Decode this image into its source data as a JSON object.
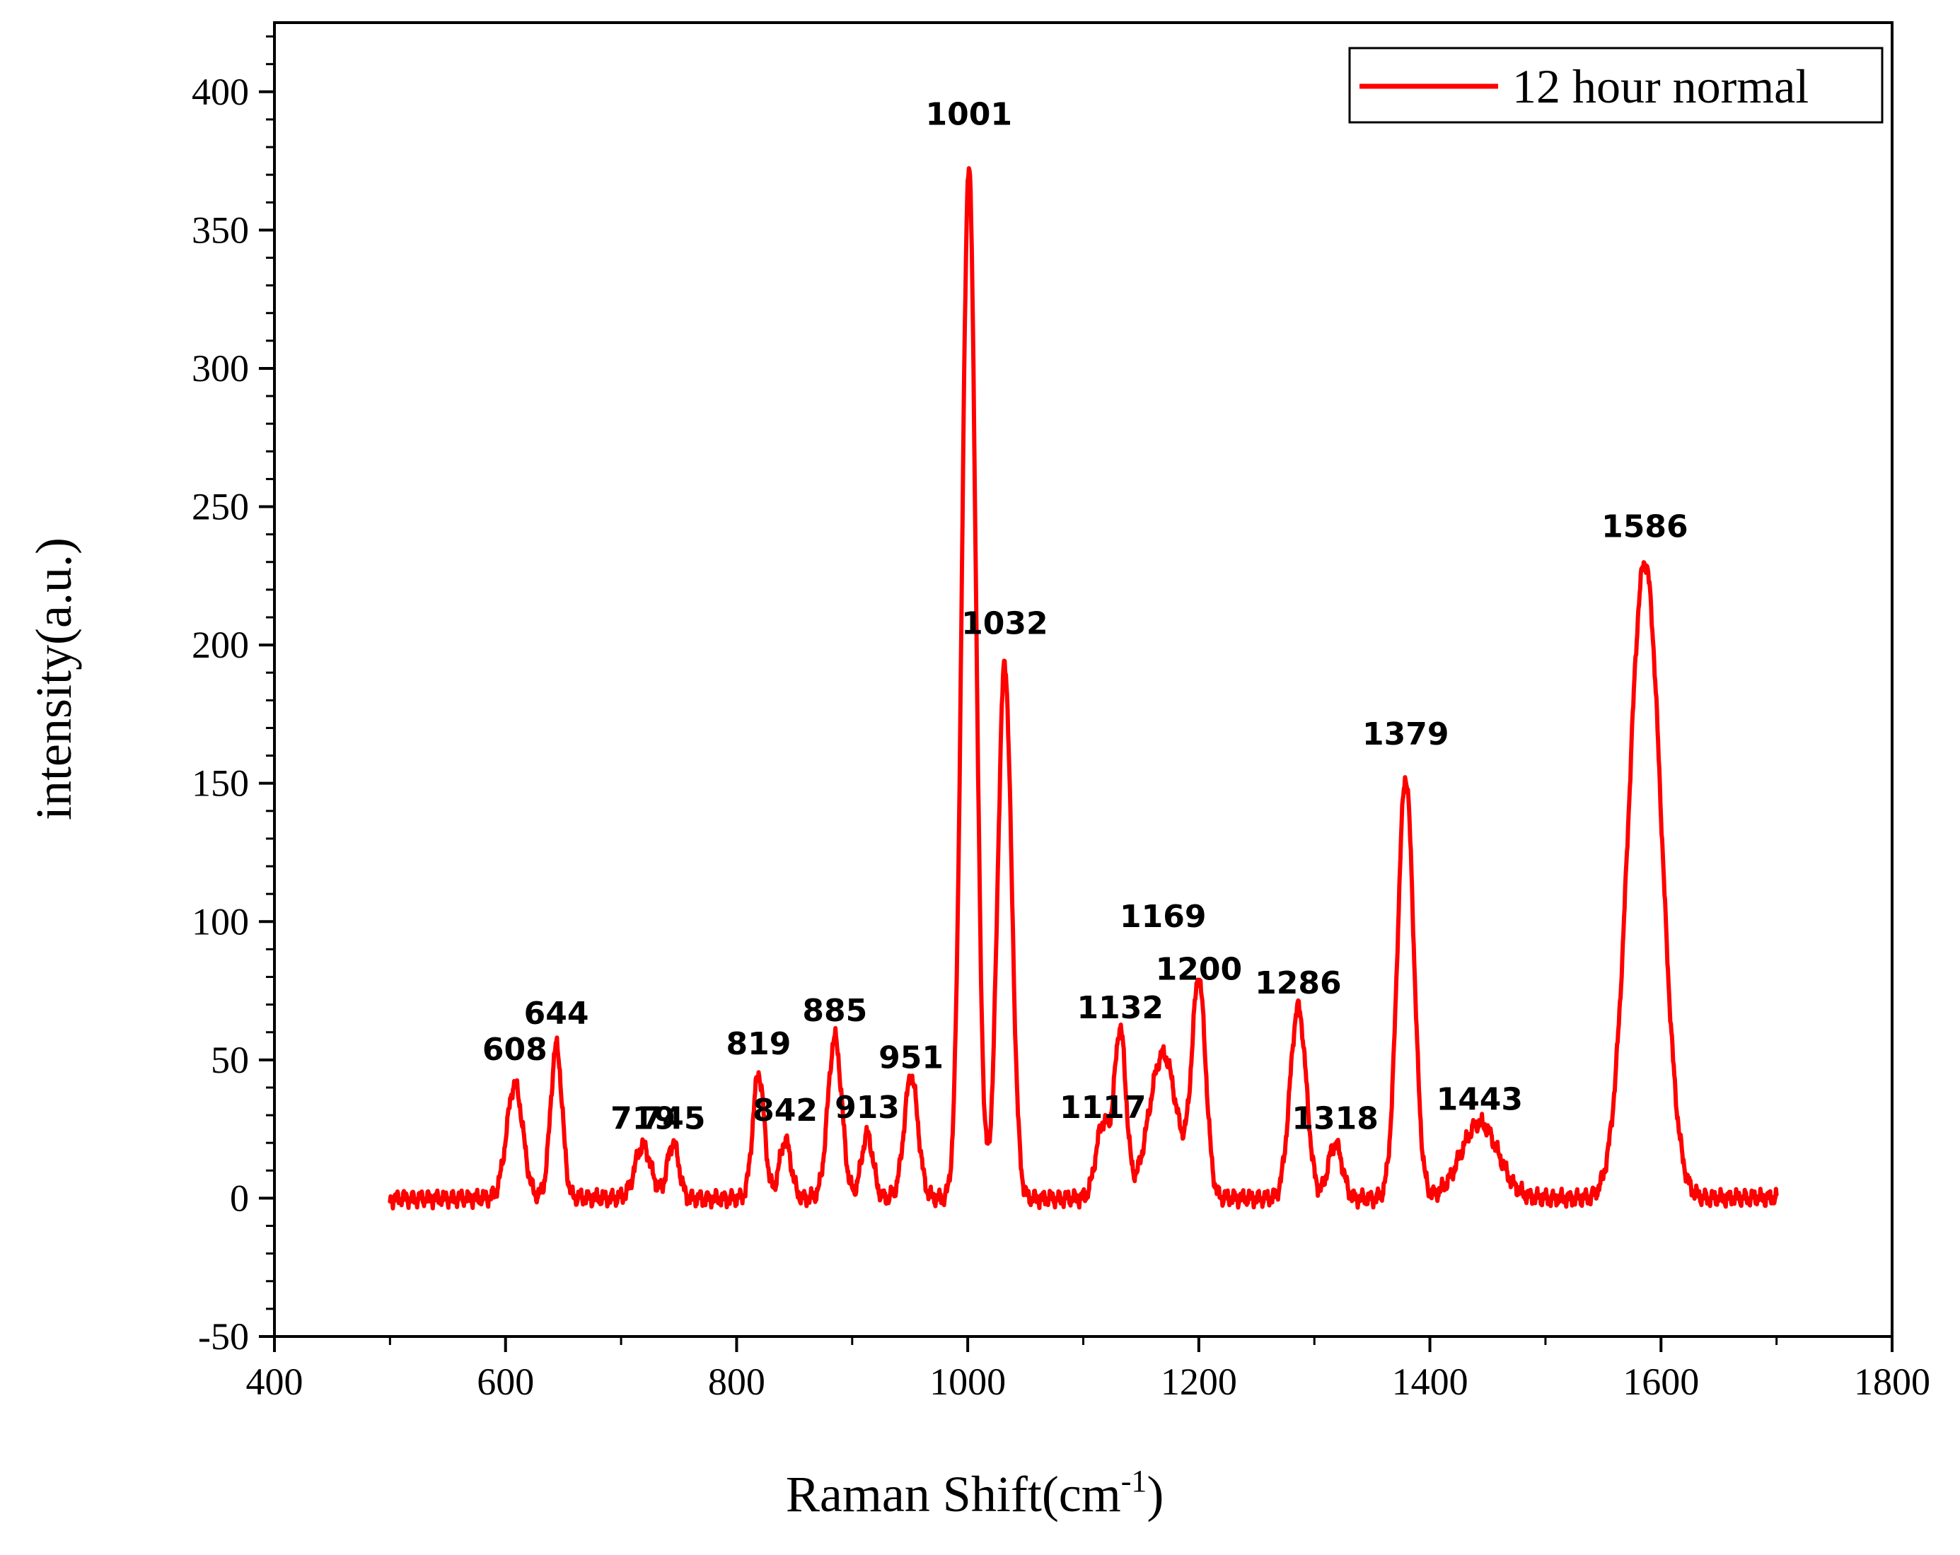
{
  "chart_data": {
    "type": "line",
    "title": "",
    "xlabel": "Raman Shift(cm",
    "xlabel_superscript": "-1",
    "xlabel_suffix": ")",
    "ylabel": "intensity(a.u.)",
    "xlim": [
      400,
      1800
    ],
    "ylim": [
      -50,
      425
    ],
    "x_ticks": [
      400,
      600,
      800,
      1000,
      1200,
      1400,
      1600,
      1800
    ],
    "y_ticks": [
      -50,
      0,
      50,
      100,
      150,
      200,
      250,
      300,
      350,
      400
    ],
    "legend": {
      "position": "top-right",
      "entries": [
        "12 hour normal"
      ]
    },
    "line_color": "#ff0000",
    "series": [
      {
        "name": "12 hour normal",
        "baseline_range": [
          500,
          1700
        ],
        "peaks": [
          {
            "x": 608,
            "y": 41,
            "width": 7
          },
          {
            "x": 644,
            "y": 55,
            "width": 5
          },
          {
            "x": 719,
            "y": 19,
            "width": 7
          },
          {
            "x": 745,
            "y": 20,
            "width": 5
          },
          {
            "x": 819,
            "y": 45,
            "width": 5
          },
          {
            "x": 842,
            "y": 21,
            "width": 5
          },
          {
            "x": 885,
            "y": 58,
            "width": 6
          },
          {
            "x": 913,
            "y": 23,
            "width": 5
          },
          {
            "x": 951,
            "y": 44,
            "width": 6
          },
          {
            "x": 1001,
            "y": 373,
            "width": 6
          },
          {
            "x": 1032,
            "y": 193,
            "width": 6
          },
          {
            "x": 1117,
            "y": 27,
            "width": 6
          },
          {
            "x": 1132,
            "y": 60,
            "width": 5
          },
          {
            "x": 1169,
            "y": 52,
            "width": 12
          },
          {
            "x": 1200,
            "y": 78,
            "width": 6
          },
          {
            "x": 1286,
            "y": 69,
            "width": 7
          },
          {
            "x": 1318,
            "y": 20,
            "width": 6
          },
          {
            "x": 1379,
            "y": 152,
            "width": 7
          },
          {
            "x": 1443,
            "y": 27,
            "width": 16
          },
          {
            "x": 1586,
            "y": 230,
            "width": 14
          }
        ]
      }
    ],
    "annotations": [
      {
        "text": "608",
        "x": 608,
        "y": 50
      },
      {
        "text": "644",
        "x": 644,
        "y": 63
      },
      {
        "text": "719",
        "x": 719,
        "y": 25
      },
      {
        "text": "745",
        "x": 745,
        "y": 25
      },
      {
        "text": "819",
        "x": 819,
        "y": 52
      },
      {
        "text": "842",
        "x": 842,
        "y": 28
      },
      {
        "text": "885",
        "x": 885,
        "y": 64
      },
      {
        "text": "913",
        "x": 913,
        "y": 29
      },
      {
        "text": "951",
        "x": 951,
        "y": 47
      },
      {
        "text": "1001",
        "x": 1001,
        "y": 388
      },
      {
        "text": "1032",
        "x": 1032,
        "y": 204
      },
      {
        "text": "1117",
        "x": 1117,
        "y": 29
      },
      {
        "text": "1132",
        "x": 1132,
        "y": 65
      },
      {
        "text": "1169",
        "x": 1169,
        "y": 98
      },
      {
        "text": "1200",
        "x": 1200,
        "y": 79
      },
      {
        "text": "1286",
        "x": 1286,
        "y": 74
      },
      {
        "text": "1318",
        "x": 1318,
        "y": 25
      },
      {
        "text": "1379",
        "x": 1379,
        "y": 164
      },
      {
        "text": "1443",
        "x": 1443,
        "y": 32
      },
      {
        "text": "1586",
        "x": 1586,
        "y": 239
      }
    ]
  }
}
